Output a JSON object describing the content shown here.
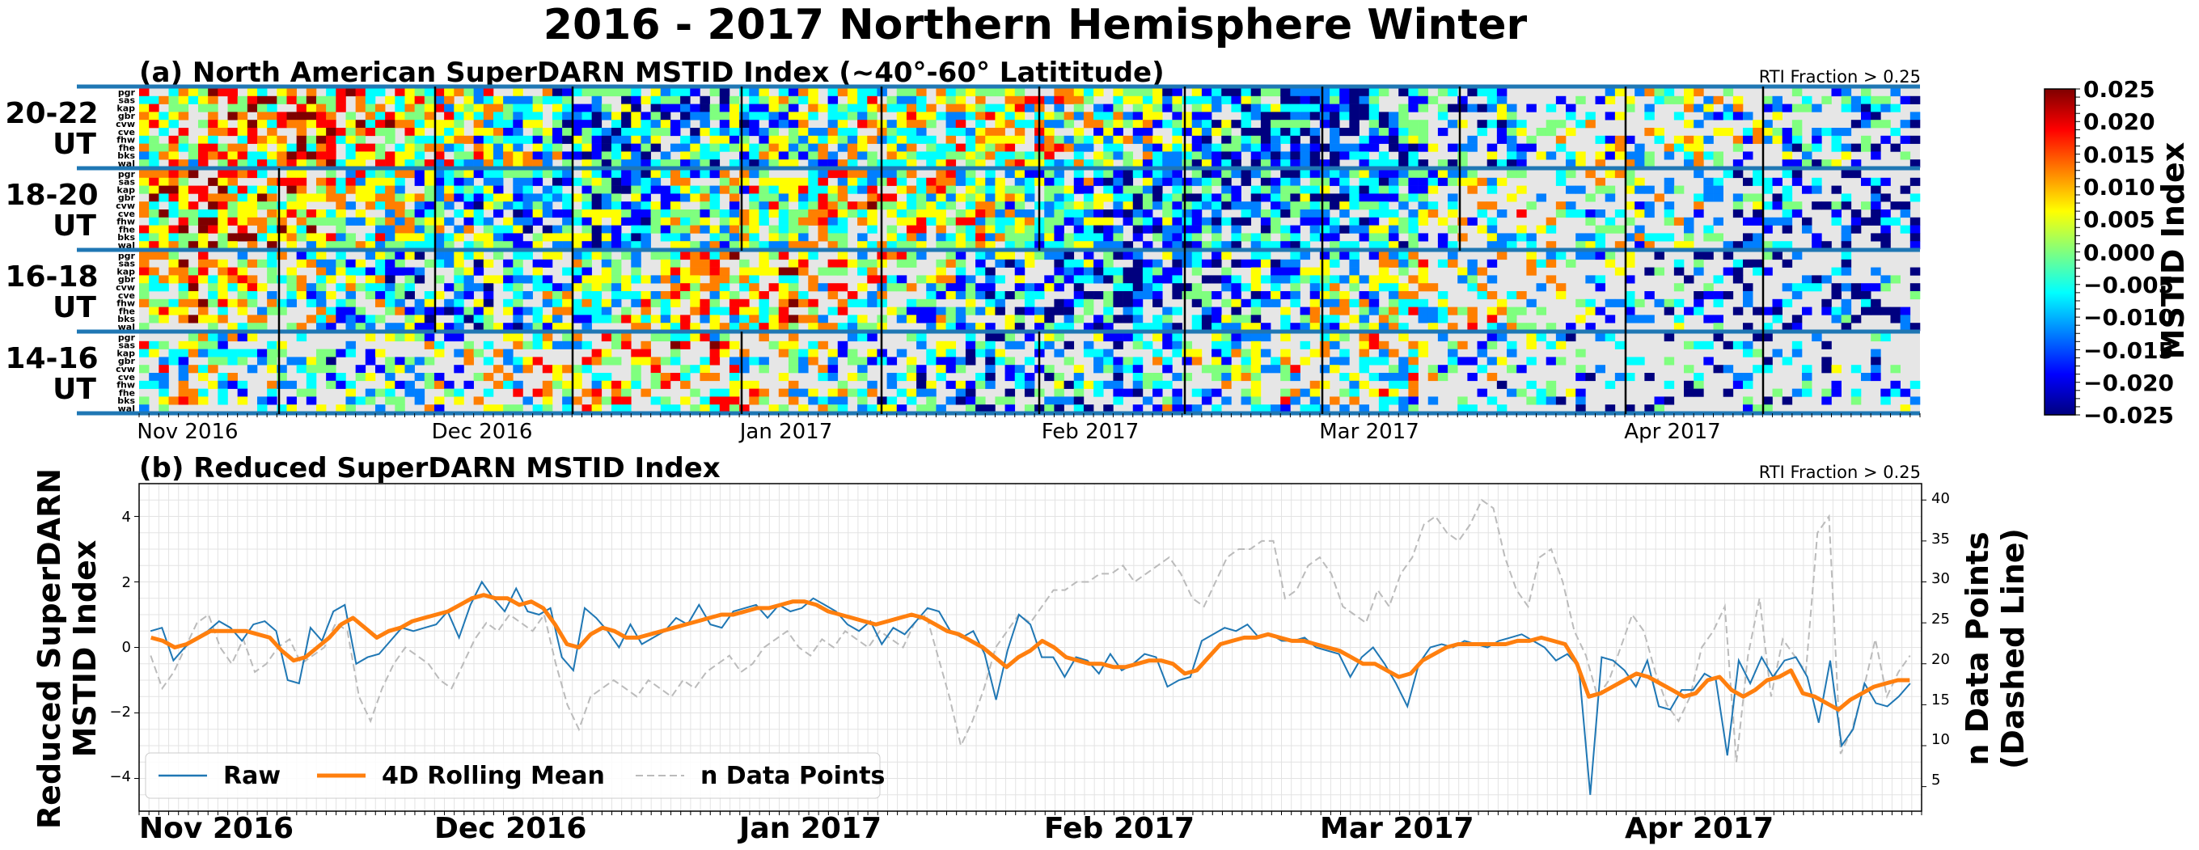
{
  "figure": {
    "suptitle": "2016 - 2017 Northern Hemisphere Winter"
  },
  "panel_a": {
    "title": "(a) North American SuperDARN MSTID Index (~40°-60° Latititude)",
    "rti_note": "RTI Fraction > 0.25",
    "band_labels": [
      [
        "20-22",
        "UT"
      ],
      [
        "18-20",
        "UT"
      ],
      [
        "16-18",
        "UT"
      ],
      [
        "14-16",
        "UT"
      ]
    ],
    "radars": [
      "pgr",
      "sas",
      "kap",
      "gbr",
      "cvw",
      "cve",
      "fhw",
      "fhe",
      "bks",
      "wal"
    ],
    "month_labels": [
      "Nov 2016",
      "Dec 2016",
      "Jan 2017",
      "Feb 2017",
      "Mar 2017",
      "Apr 2017"
    ]
  },
  "colorbar": {
    "label": "MSTID Index",
    "ticks": [
      "0.025",
      "0.020",
      "0.015",
      "0.010",
      "0.005",
      "0.000",
      "−0.005",
      "−0.010",
      "−0.015",
      "−0.020",
      "−0.025"
    ],
    "colors": [
      "#00007f",
      "#0000ff",
      "#007fff",
      "#00ffff",
      "#7fff7f",
      "#ffff00",
      "#ff7f00",
      "#ff0000",
      "#7f0000"
    ]
  },
  "panel_b": {
    "title": "(b) Reduced SuperDARN MSTID Index",
    "rti_note": "RTI Fraction > 0.25",
    "ylabel_left": [
      "Reduced SuperDARN",
      "MSTID Index"
    ],
    "ylabel_right": [
      "n Data Points",
      "(Dashed Line)"
    ],
    "yticks_left": [
      "4",
      "2",
      "0",
      "−2",
      "−4"
    ],
    "yticks_right": [
      "40",
      "35",
      "30",
      "25",
      "20",
      "15",
      "10",
      "5"
    ],
    "month_labels": [
      "Nov 2016",
      "Dec 2016",
      "Jan 2017",
      "Feb 2017",
      "Mar 2017",
      "Apr 2017"
    ],
    "legend": [
      "Raw",
      "4D Rolling Mean",
      "n Data Points"
    ]
  },
  "chart_data": [
    {
      "type": "heatmap",
      "title": "(a) North American SuperDARN MSTID Index (~40°-60° Latititude)",
      "x_range": [
        "2016-11-01",
        "2017-05-01"
      ],
      "rows": [
        "20-22 UT",
        "18-20 UT",
        "16-18 UT",
        "14-16 UT"
      ],
      "radars": [
        "pgr",
        "sas",
        "kap",
        "gbr",
        "cvw",
        "cve",
        "fhw",
        "fhe",
        "bks",
        "wal"
      ],
      "colorbar_range": [
        -0.025,
        0.025
      ],
      "colorbar_label": "MSTID Index",
      "annotation": "RTI Fraction > 0.25"
    },
    {
      "type": "line",
      "title": "(b) Reduced SuperDARN MSTID Index",
      "x_range": [
        "2016-11-01",
        "2017-05-01"
      ],
      "xlabel": "",
      "ylabel": "Reduced SuperDARN MSTID Index",
      "y2label": "n Data Points (Dashed Line)",
      "ylim": [
        -5,
        5
      ],
      "y2lim": [
        2,
        42
      ],
      "legend_position": "lower-left",
      "grid": true,
      "series": [
        {
          "name": "Raw",
          "color": "#1f77b4",
          "axis": "left",
          "values": [
            0.5,
            0.6,
            -0.4,
            0,
            0.3,
            0.5,
            0.8,
            0.6,
            0.2,
            0.7,
            0.8,
            0.5,
            -1,
            -1.1,
            0.6,
            0.2,
            1.1,
            1.3,
            -0.5,
            -0.3,
            -0.2,
            0.2,
            0.6,
            0.5,
            0.6,
            0.7,
            1.1,
            0.3,
            1.3,
            2,
            1.5,
            1.1,
            1.8,
            1.1,
            1,
            1.2,
            -0.3,
            -0.7,
            1.2,
            0.9,
            0.5,
            0,
            0.7,
            0.1,
            0.3,
            0.5,
            0.9,
            0.7,
            1.3,
            0.7,
            0.6,
            1.1,
            1.2,
            1.3,
            0.9,
            1.3,
            1.1,
            1.2,
            1.5,
            1.3,
            1.1,
            0.7,
            0.5,
            0.8,
            0.1,
            0.6,
            0.4,
            0.8,
            1.2,
            1.1,
            0.5,
            0.3,
            0.5,
            -0.2,
            -1.6,
            -0.1,
            1,
            0.7,
            -0.3,
            -0.3,
            -0.9,
            -0.3,
            -0.4,
            -0.8,
            -0.2,
            -0.7,
            -0.5,
            -0.2,
            -0.3,
            -1.2,
            -1,
            -0.9,
            0.2,
            0.4,
            0.6,
            0.5,
            0.7,
            0.3,
            0.4,
            0.2,
            0.2,
            0.3,
            0,
            -0.1,
            -0.2,
            -0.9,
            -0.3,
            0,
            -0.5,
            -1.1,
            -1.8,
            -0.5,
            0,
            0.1,
            0,
            0.2,
            0.1,
            0,
            0.2,
            0.3,
            0.4,
            0.2,
            0,
            -0.4,
            -0.2,
            -0.6,
            -4.5,
            -0.3,
            -0.4,
            -0.7,
            -1.2,
            -0.4,
            -1.8,
            -1.9,
            -1.3,
            -1.3,
            -0.8,
            -1,
            -3.3,
            -0.4,
            -1.1,
            -0.3,
            -0.9,
            -0.4,
            -0.3,
            -0.9,
            -2.3,
            -0.4,
            -3,
            -2.5,
            -1.1,
            -1.7,
            -1.8,
            -1.5,
            -1.1
          ],
          "note": "values sampled roughly daily from Nov 1 2016 through Apr 28 2017"
        },
        {
          "name": "4D Rolling Mean",
          "color": "#ff7f0e",
          "axis": "left",
          "values": [
            0.3,
            0.2,
            0,
            0.1,
            0.3,
            0.5,
            0.5,
            0.5,
            0.5,
            0.4,
            0.3,
            -0.1,
            -0.4,
            -0.3,
            0,
            0.3,
            0.7,
            0.9,
            0.6,
            0.3,
            0.5,
            0.6,
            0.8,
            0.9,
            1,
            1.1,
            1.3,
            1.5,
            1.6,
            1.5,
            1.5,
            1.3,
            1.4,
            1.2,
            0.7,
            0.1,
            0,
            0.4,
            0.6,
            0.5,
            0.3,
            0.3,
            0.4,
            0.5,
            0.6,
            0.7,
            0.8,
            0.9,
            1,
            1,
            1.1,
            1.2,
            1.2,
            1.3,
            1.4,
            1.4,
            1.3,
            1.1,
            1,
            0.9,
            0.8,
            0.7,
            0.8,
            0.9,
            1,
            0.9,
            0.7,
            0.5,
            0.4,
            0.2,
            0,
            -0.3,
            -0.6,
            -0.3,
            -0.1,
            0.2,
            0,
            -0.3,
            -0.4,
            -0.5,
            -0.5,
            -0.6,
            -0.6,
            -0.5,
            -0.4,
            -0.4,
            -0.5,
            -0.8,
            -0.7,
            -0.3,
            0.1,
            0.2,
            0.3,
            0.3,
            0.4,
            0.3,
            0.2,
            0.2,
            0.1,
            0,
            -0.1,
            -0.3,
            -0.5,
            -0.5,
            -0.7,
            -0.9,
            -0.8,
            -0.4,
            -0.2,
            0,
            0.1,
            0.1,
            0.1,
            0.1,
            0.1,
            0.2,
            0.2,
            0.3,
            0.2,
            0.1,
            -0.5,
            -1.5,
            -1.4,
            -1.2,
            -1,
            -0.8,
            -0.9,
            -1.1,
            -1.3,
            -1.5,
            -1.4,
            -1,
            -0.9,
            -1.3,
            -1.5,
            -1.3,
            -1,
            -0.9,
            -0.7,
            -1.4,
            -1.5,
            -1.7,
            -1.9,
            -1.6,
            -1.4,
            -1.2,
            -1.1,
            -1,
            -1
          ]
        },
        {
          "name": "n Data Points",
          "color": "#bbbbbb",
          "axis": "right",
          "dashed": true,
          "values": [
            21,
            17,
            19,
            22,
            25,
            26,
            22,
            20,
            23,
            19,
            20,
            22,
            23,
            20,
            21,
            22,
            25,
            24,
            16,
            13,
            17,
            20,
            22,
            21,
            20,
            18,
            17,
            20,
            23,
            25,
            24,
            26,
            25,
            24,
            26,
            20,
            15,
            12,
            16,
            17,
            18,
            17,
            16,
            18,
            17,
            16,
            18,
            17,
            19,
            20,
            21,
            19,
            20,
            22,
            23,
            24,
            22,
            21,
            23,
            22,
            24,
            23,
            22,
            24,
            23,
            22,
            25,
            26,
            21,
            16,
            10,
            13,
            17,
            22,
            24,
            26,
            25,
            27,
            29,
            29,
            30,
            30,
            31,
            31,
            32,
            30,
            31,
            32,
            33,
            31,
            28,
            27,
            30,
            33,
            34,
            34,
            35,
            35,
            28,
            29,
            32,
            33,
            31,
            27,
            26,
            25,
            29,
            27,
            31,
            33,
            37,
            38,
            36,
            35,
            37,
            40,
            39,
            33,
            29,
            27,
            33,
            34,
            30,
            24,
            21,
            16,
            18,
            22,
            26,
            24,
            19,
            15,
            13,
            16,
            22,
            24,
            27,
            8,
            21,
            28,
            16,
            23,
            21,
            19,
            36,
            38,
            9,
            12,
            17,
            23,
            16,
            19,
            21
          ]
        }
      ]
    }
  ]
}
